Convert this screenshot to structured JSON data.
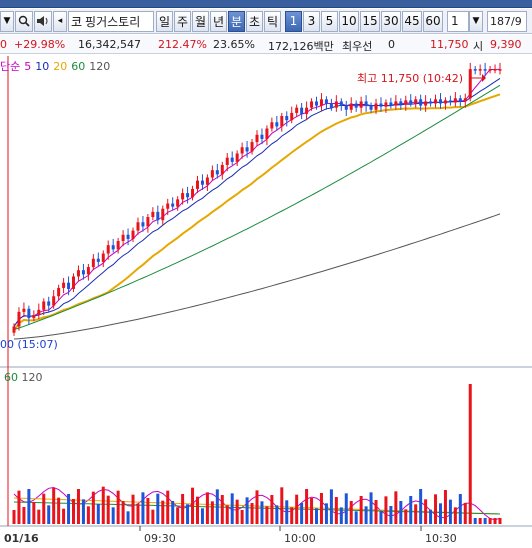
{
  "toolbar": {
    "stock_market_marker": "코",
    "stock_name": "핑거스토리",
    "periods": [
      "일",
      "주",
      "월",
      "년",
      "분",
      "초",
      "틱"
    ],
    "active_period": "분",
    "intervals": [
      "1",
      "3",
      "5",
      "10",
      "15",
      "30",
      "45",
      "60"
    ],
    "active_interval": "1",
    "tick_value": "1",
    "count_display": "187/9"
  },
  "quote": {
    "change": "0",
    "change_rate": "+29.98%",
    "volume": "16,342,547",
    "volume_ratio": "212.47%",
    "turnover": "23.65%",
    "amount": "172,126백만",
    "priority_ask_label": "최우선",
    "priority_ask_value": "0",
    "price": "11,750",
    "open_label": "시",
    "open_value": "9,390"
  },
  "legend": {
    "prefix": "단순",
    "ma_periods": [
      "5",
      "10",
      "20",
      "60",
      "120"
    ],
    "ma_colors": [
      "#c800c8",
      "#1a2db4",
      "#e6a800",
      "#1a8c3c",
      "#555555"
    ]
  },
  "volume_legend": {
    "ma_periods": [
      "60",
      "120"
    ]
  },
  "annotations": {
    "high": "최고 11,750 (10:42)",
    "low": "00 (15:07)"
  },
  "chart_data": {
    "type": "candlestick",
    "x_tick_labels": [
      "01/16",
      "09:30",
      "10:00",
      "10:30"
    ],
    "colors": {
      "up": "#e8131b",
      "down": "#1c56d6"
    },
    "candles_close": [
      9280,
      9420,
      9450,
      9360,
      9390,
      9440,
      9520,
      9480,
      9570,
      9650,
      9700,
      9640,
      9760,
      9820,
      9780,
      9850,
      9930,
      9900,
      9980,
      10060,
      10020,
      10100,
      10160,
      10120,
      10200,
      10280,
      10240,
      10330,
      10380,
      10300,
      10410,
      10460,
      10430,
      10500,
      10560,
      10520,
      10600,
      10680,
      10640,
      10710,
      10780,
      10740,
      10830,
      10900,
      10860,
      10940,
      11000,
      10960,
      11050,
      11120,
      11080,
      11180,
      11240,
      11200,
      11300,
      11260,
      11330,
      11380,
      11320,
      11380,
      11440,
      11400,
      11460,
      11420,
      11380,
      11440,
      11400,
      11360,
      11420,
      11380,
      11440,
      11400,
      11360,
      11420,
      11390,
      11430,
      11400,
      11440,
      11410,
      11450,
      11420,
      11460,
      11400,
      11440,
      11420,
      11460,
      11420,
      11450,
      11430,
      11470,
      11440,
      11470,
      11750,
      11740,
      11750,
      11740,
      11750,
      11750,
      11750
    ]
  }
}
